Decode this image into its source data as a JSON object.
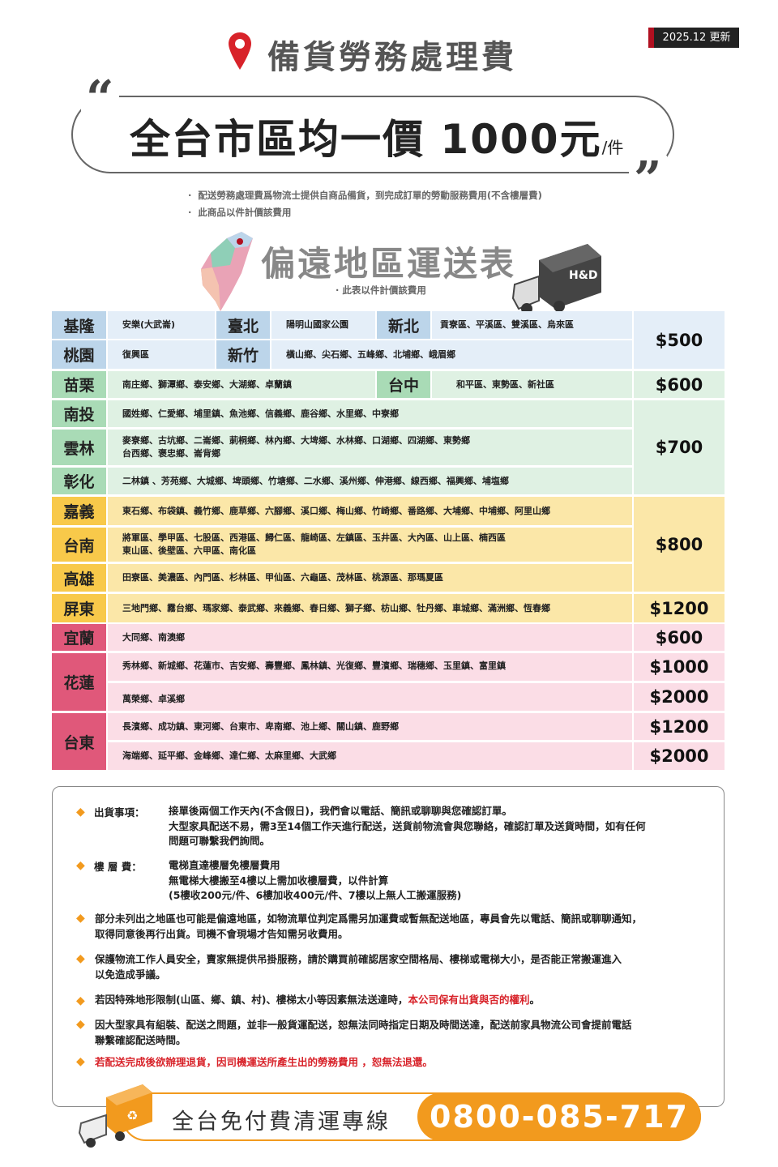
{
  "header": {
    "badge": "2025.12 更新",
    "title": "備貨勞務處理費",
    "price_main": "全台市區均一價 1000元",
    "price_unit": "/件",
    "bullets": [
      "配送勞務處理費爲物流士提供自商品備貨，到完成訂單的勞動服務費用(不含樓層費)",
      "此商品以件計價該費用"
    ]
  },
  "remote": {
    "title": "偏遠地區運送表",
    "subtitle": "· 此表以件計價該費用",
    "truck_logo": "H&D"
  },
  "colors": {
    "blue": "#bcd5ea",
    "green": "#a9dbb6",
    "yellow": "#f8c94a",
    "pink": "#e0587a",
    "accent": "#f29a1e",
    "red": "#d8232a"
  },
  "table": {
    "r1": {
      "a": "基隆",
      "a_areas": "安樂(大武崙)",
      "b": "臺北",
      "b_areas": "陽明山國家公園",
      "c": "新北",
      "c_areas": "貢寮區、平溪區、雙溪區、烏來區"
    },
    "r2": {
      "a": "桃園",
      "a_areas": "復興區",
      "b": "新竹",
      "b_areas": "橫山鄉、尖石鄉、五峰鄉、北埔鄉、峨眉鄉"
    },
    "r3": {
      "a": "苗栗",
      "a_areas": "南庄鄉、獅潭鄉、泰安鄉、大湖鄉、卓蘭鎮",
      "b": "台中",
      "b_areas": "和平區、東勢區、新社區"
    },
    "r4": {
      "a": "南投",
      "a_areas": "國姓鄉、仁愛鄉、埔里鎮、魚池鄉、信義鄉、鹿谷鄉、水里鄉、中寮鄉"
    },
    "r5": {
      "a": "雲林",
      "a_areas": "麥寮鄉、古坑鄉、二崙鄉、莿桐鄉、林內鄉、大埤鄉、水林鄉、口湖鄉、四湖鄉、東勢鄉",
      "a_areas2": "台西鄉、褒忠鄉、崙背鄉"
    },
    "r6": {
      "a": "彰化",
      "a_areas": "二林鎮 、芳苑鄉、大城鄉、埤頭鄉、竹塘鄉、二水鄉、溪州鄉、伸港鄉、線西鄉、福興鄉、埔塩鄉"
    },
    "r7": {
      "a": "嘉義",
      "a_areas": "東石鄉、布袋鎮、義竹鄉、鹿草鄉、六腳鄉、溪口鄉、梅山鄉、竹崎鄉、番路鄉、大埔鄉、中埔鄉、阿里山鄉"
    },
    "r8": {
      "a": "台南",
      "a_areas": "將軍區、學甲區、七股區、西港區、歸仁區、龍崎區、左鎮區、玉井區、大內區、山上區、楠西區",
      "a_areas2": "東山區、後壁區、六甲區、南化區"
    },
    "r9": {
      "a": "高雄",
      "a_areas": "田寮區、美濃區、內門區、杉林區、甲仙區、六龜區、茂林區、桃源區、那瑪夏區"
    },
    "r10": {
      "a": "屏東",
      "a_areas": "三地門鄉、霧台鄉、瑪家鄉、泰武鄉、來義鄉、春日鄉、獅子鄉、枋山鄉、牡丹鄉、車城鄉、滿洲鄉、恆春鄉"
    },
    "r11": {
      "a": "宜蘭",
      "a_areas": "大同鄉、南澳鄉"
    },
    "r12": {
      "a": "花蓮",
      "a_areas": "秀林鄉、新城鄉、花蓮市、吉安鄉、壽豐鄉、鳳林鎮、光復鄉、豐濱鄉、瑞穗鄉、玉里鎮、富里鎮",
      "a_areas2": "萬榮鄉、卓溪鄉"
    },
    "r13": {
      "a": "台東",
      "a_areas": "長濱鄉、成功鎮、東河鄉、台東市、卑南鄉、池上鄉、關山鎮、鹿野鄉",
      "a_areas2": "海端鄉、延平鄉、金峰鄉、達仁鄉、太麻里鄉、大武鄉"
    },
    "prices": [
      "$500",
      "$600",
      "$700",
      "$800",
      "$1200",
      "$600",
      "$1000",
      "$2000",
      "$1200",
      "$2000"
    ]
  },
  "notes": {
    "n1_label": "出貨事項：",
    "n1": [
      "接單後兩個工作天內(不含假日)，我們會以電話、簡訊或聊聊與您確認訂單。",
      "大型家具配送不易，需3至14個工作天進行配送，送貨前物流會與您聯絡，確認訂單及送貨時間，如有任何",
      "問題可聯繫我們詢問。"
    ],
    "n2_label": "樓 層 費：",
    "n2": [
      "電梯直達樓層免樓層費用",
      "無電梯大樓搬至4樓以上需加收樓層費，以件計算",
      "(5樓收200元/件、6樓加收400元/件、7樓以上無人工搬運服務)"
    ],
    "n3": [
      "部分未列出之地區也可能是偏遠地區，如物流單位判定爲需另加運費或暫無配送地區，專員會先以電話、簡訊或聊聊通知，",
      "取得同意後再行出貨。司機不會現場才告知需另收費用。"
    ],
    "n4": [
      "保護物流工作人員安全，賣家無提供吊掛服務，請於購買前確認居家空間格局、樓梯或電梯大小，是否能正常搬運進入",
      "以免造成爭議。"
    ],
    "n5": "若因特殊地形限制(山區、鄉、鎮、村)、樓梯太小等因素無法送達時，",
    "n5_red": "本公司保有出貨與否的權利",
    "n5_end": "。",
    "n6": [
      "因大型家具有組裝、配送之問題，並非一般貨運配送，恕無法同時指定日期及時間送達，配送前家具物流公司會提前電話",
      "聯繫確認配送時間。"
    ],
    "n7": "若配送完成後欲辦理退貨，因司機運送所產生出的勞務費用 ，恕無法退還。"
  },
  "banner": {
    "label": "全台免付費清運專線",
    "phone": "0800-085-717"
  }
}
